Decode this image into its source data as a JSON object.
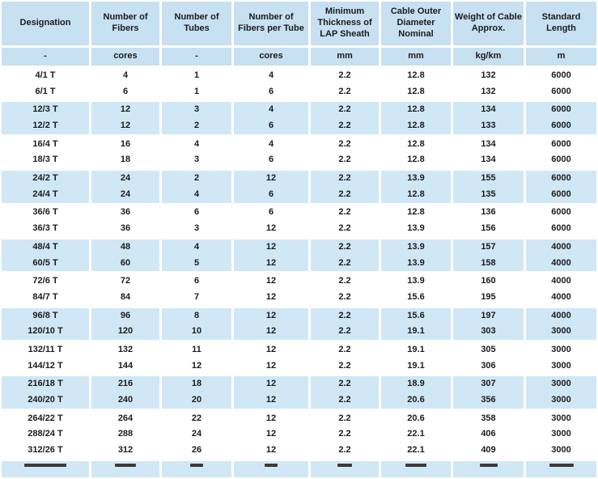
{
  "table": {
    "colors": {
      "header_bg": "#C7E0F2",
      "band_bg": "#D0E7F6",
      "text": "#1C1C1C"
    },
    "columns": [
      {
        "label": "Designation",
        "unit": "-"
      },
      {
        "label": "Number of Fibers",
        "unit": "cores"
      },
      {
        "label": "Number of Tubes",
        "unit": "-"
      },
      {
        "label": "Number of Fibers per Tube",
        "unit": "cores"
      },
      {
        "label": "Minimum Thickness of LAP Sheath",
        "unit": "mm"
      },
      {
        "label": "Cable Outer Diameter Nominal",
        "unit": "mm"
      },
      {
        "label": "Weight of Cable Approx.",
        "unit": "kg/km"
      },
      {
        "label": "Standard Length",
        "unit": "m"
      }
    ],
    "groups": [
      {
        "shaded": false,
        "rows": [
          [
            "4/1 T",
            "4",
            "1",
            "4",
            "2.2",
            "12.8",
            "132",
            "6000"
          ],
          [
            "6/1 T",
            "6",
            "1",
            "6",
            "2.2",
            "12.8",
            "132",
            "6000"
          ]
        ]
      },
      {
        "shaded": true,
        "rows": [
          [
            "12/3 T",
            "12",
            "3",
            "4",
            "2.2",
            "12.8",
            "134",
            "6000"
          ],
          [
            "12/2 T",
            "12",
            "2",
            "6",
            "2.2",
            "12.8",
            "133",
            "6000"
          ]
        ]
      },
      {
        "shaded": false,
        "rows": [
          [
            "16/4 T",
            "16",
            "4",
            "4",
            "2.2",
            "12.8",
            "134",
            "6000"
          ],
          [
            "18/3 T",
            "18",
            "3",
            "6",
            "2.2",
            "12.8",
            "134",
            "6000"
          ]
        ]
      },
      {
        "shaded": true,
        "rows": [
          [
            "24/2 T",
            "24",
            "2",
            "12",
            "2.2",
            "13.9",
            "155",
            "6000"
          ],
          [
            "24/4 T",
            "24",
            "4",
            "6",
            "2.2",
            "12.8",
            "135",
            "6000"
          ]
        ]
      },
      {
        "shaded": false,
        "rows": [
          [
            "36/6 T",
            "36",
            "6",
            "6",
            "2.2",
            "12.8",
            "136",
            "6000"
          ],
          [
            "36/3 T",
            "36",
            "3",
            "12",
            "2.2",
            "13.9",
            "156",
            "6000"
          ]
        ]
      },
      {
        "shaded": true,
        "rows": [
          [
            "48/4 T",
            "48",
            "4",
            "12",
            "2.2",
            "13.9",
            "157",
            "4000"
          ],
          [
            "60/5 T",
            "60",
            "5",
            "12",
            "2.2",
            "13.9",
            "158",
            "4000"
          ]
        ]
      },
      {
        "shaded": false,
        "rows": [
          [
            "72/6 T",
            "72",
            "6",
            "12",
            "2.2",
            "13.9",
            "160",
            "4000"
          ],
          [
            "84/7 T",
            "84",
            "7",
            "12",
            "2.2",
            "15.6",
            "195",
            "4000"
          ]
        ]
      },
      {
        "shaded": true,
        "rows": [
          [
            "96/8 T",
            "96",
            "8",
            "12",
            "2.2",
            "15.6",
            "197",
            "4000"
          ],
          [
            "120/10 T",
            "120",
            "10",
            "12",
            "2.2",
            "19.1",
            "303",
            "3000"
          ]
        ]
      },
      {
        "shaded": false,
        "rows": [
          [
            "132/11 T",
            "132",
            "11",
            "12",
            "2.2",
            "19.1",
            "305",
            "3000"
          ],
          [
            "144/12 T",
            "144",
            "12",
            "12",
            "2.2",
            "19.1",
            "306",
            "3000"
          ]
        ]
      },
      {
        "shaded": true,
        "rows": [
          [
            "216/18 T",
            "216",
            "18",
            "12",
            "2.2",
            "18.9",
            "307",
            "3000"
          ],
          [
            "240/20 T",
            "240",
            "20",
            "12",
            "2.2",
            "20.6",
            "356",
            "3000"
          ]
        ]
      },
      {
        "shaded": false,
        "rows": [
          [
            "264/22 T",
            "264",
            "22",
            "12",
            "2.2",
            "20.6",
            "358",
            "3000"
          ],
          [
            "288/24 T",
            "288",
            "24",
            "12",
            "2.2",
            "22.1",
            "406",
            "3000"
          ],
          [
            "312/26 T",
            "312",
            "26",
            "12",
            "2.2",
            "22.1",
            "409",
            "3000"
          ]
        ]
      }
    ]
  }
}
